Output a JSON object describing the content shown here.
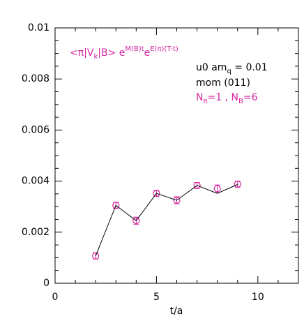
{
  "chart_data": {
    "type": "errorbar",
    "x_label": "t/a",
    "xlim": [
      0,
      12
    ],
    "xticks": [
      0,
      5,
      10
    ],
    "xminor_ticks": [
      1,
      2,
      3,
      4,
      6,
      7,
      8,
      9,
      11
    ],
    "ylim": [
      0,
      0.01
    ],
    "yticks": [
      0,
      0.002,
      0.004,
      0.006,
      0.008,
      0.01
    ],
    "yminor_ticks": [
      0.0005,
      0.001,
      0.0015,
      0.0025,
      0.003,
      0.0035,
      0.0045,
      0.005,
      0.0055,
      0.0065,
      0.007,
      0.0075,
      0.0085,
      0.009,
      0.0095
    ],
    "series": [
      {
        "kind": "points",
        "color": "#d6249f",
        "x": [
          2,
          3,
          4,
          5,
          6,
          7,
          8,
          9
        ],
        "values": [
          0.00107,
          0.00305,
          0.00245,
          0.00352,
          0.00325,
          0.00383,
          0.0037,
          0.00388
        ],
        "errors": [
          0.00012,
          0.00012,
          0.00014,
          0.00012,
          0.00014,
          0.00012,
          0.00015,
          0.00012
        ]
      },
      {
        "kind": "line",
        "color": "#000000",
        "x": [
          2,
          3,
          4,
          5,
          6,
          7,
          8,
          9
        ],
        "values": [
          0.00107,
          0.00305,
          0.00245,
          0.00352,
          0.00325,
          0.00383,
          0.00352,
          0.00387
        ]
      }
    ],
    "annotations": [
      {
        "color": "#d6249f",
        "parts": [
          {
            "text": "<π|V",
            "style": "normal"
          },
          {
            "text": "k",
            "style": "sub"
          },
          {
            "text": "|B>  e",
            "style": "normal"
          },
          {
            "text": "M(B)t",
            "style": "sup"
          },
          {
            "text": "e",
            "style": "normal"
          },
          {
            "text": "E(π)(T-t)",
            "style": "sup"
          }
        ]
      },
      {
        "color": "#000000",
        "parts": [
          {
            "text": "u0 am",
            "style": "normal"
          },
          {
            "text": "q",
            "style": "sub"
          },
          {
            "text": " = 0.01",
            "style": "normal"
          }
        ]
      },
      {
        "color": "#000000",
        "parts": [
          {
            "text": "mom (011)",
            "style": "normal"
          }
        ]
      },
      {
        "color": "#d6249f",
        "parts": [
          {
            "text": "N",
            "style": "normal"
          },
          {
            "text": "π",
            "style": "sub"
          },
          {
            "text": "=1 , N",
            "style": "normal"
          },
          {
            "text": "B",
            "style": "sub"
          },
          {
            "text": "=6",
            "style": "normal"
          }
        ]
      }
    ]
  }
}
